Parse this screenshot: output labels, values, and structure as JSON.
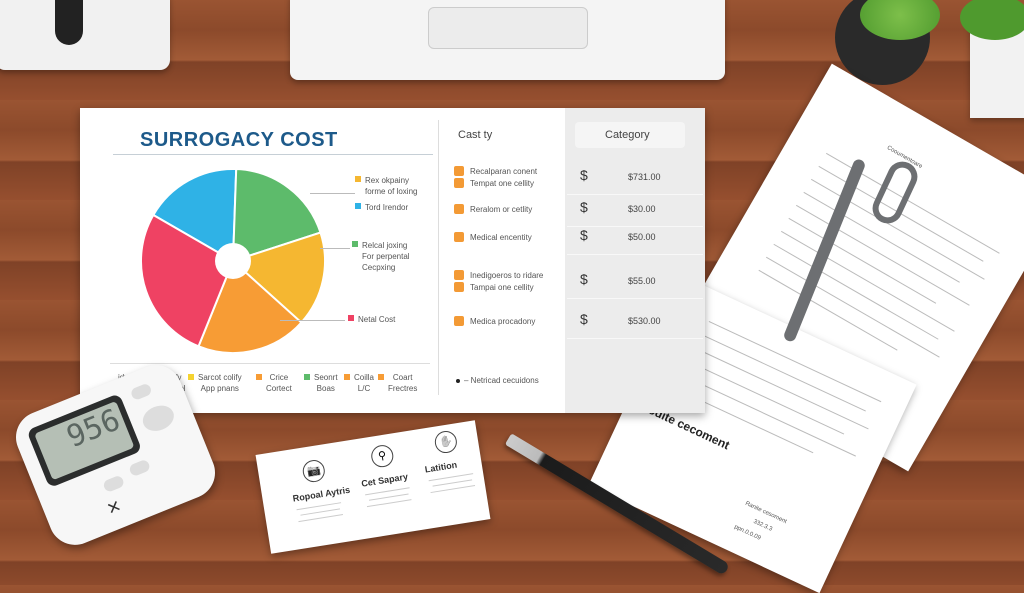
{
  "main_sheet": {
    "title": "SURROGACY COST",
    "pie_labels": [
      {
        "text": "Rex okpainy\nforme of loxing",
        "color": "#f5b731"
      },
      {
        "text": "Tord Irendor",
        "color": "#2fb2e6"
      },
      {
        "text": "Relcal joxing\nFor perpental\nCecpxing",
        "color": "#5dbb6b"
      },
      {
        "text": "Netal Cost",
        "color": "#ef4263"
      }
    ],
    "slice_colors": [
      "#2fb2e6",
      "#5dbb6b",
      "#f5b731",
      "#f79c35",
      "#ef4263"
    ],
    "bottom_legend": [
      {
        "text": "idy",
        "color": ""
      },
      {
        "text": "Fritify\nbxchool",
        "color": "#ef4263"
      },
      {
        "text": "Sarcot colify\nApp pnans",
        "color": "#f5d331"
      },
      {
        "text": "Crice\nCortect",
        "color": "#f79c35"
      },
      {
        "text": "Seonrt\nBoas",
        "color": "#5dbb6b"
      },
      {
        "text": "Coilla\nL/C",
        "color": "#f79c35"
      },
      {
        "text": "Coart\nFrectres",
        "color": "#f79c35"
      }
    ],
    "col_header": "Cast ty",
    "category_header": "Category",
    "rows": [
      {
        "items": [
          "Recalparan conent",
          "Tempat one cellity"
        ],
        "currency": "$",
        "amount": "$731.00"
      },
      {
        "items": [
          "Reralom or cetlity"
        ],
        "currency": "$",
        "amount": "$30.00"
      },
      {
        "items": [
          "Medical encentity"
        ],
        "currency": "$",
        "amount": "$50.00"
      },
      {
        "items": [
          "Inedigoeros to ridare",
          "Tampai one cellity"
        ],
        "currency": "$",
        "amount": "$55.00"
      },
      {
        "items": [
          "Medica procadony"
        ],
        "currency": "$",
        "amount": "$530.00"
      }
    ],
    "footnote": "– Netricad cecuidons"
  },
  "card": {
    "items": [
      {
        "title": "Ropoal Aytris",
        "icon": "camera-icon"
      },
      {
        "title": "Cet Sapary",
        "icon": "bottle-icon"
      },
      {
        "title": "Latition",
        "icon": "hand-icon"
      }
    ]
  },
  "calculator": {
    "display": "956"
  },
  "document": {
    "title": "Rodite cecoment",
    "header": "Cooumentoare",
    "footer": [
      "Ranite cesoment",
      "332.3.3",
      "ppn.0.0.09"
    ]
  }
}
